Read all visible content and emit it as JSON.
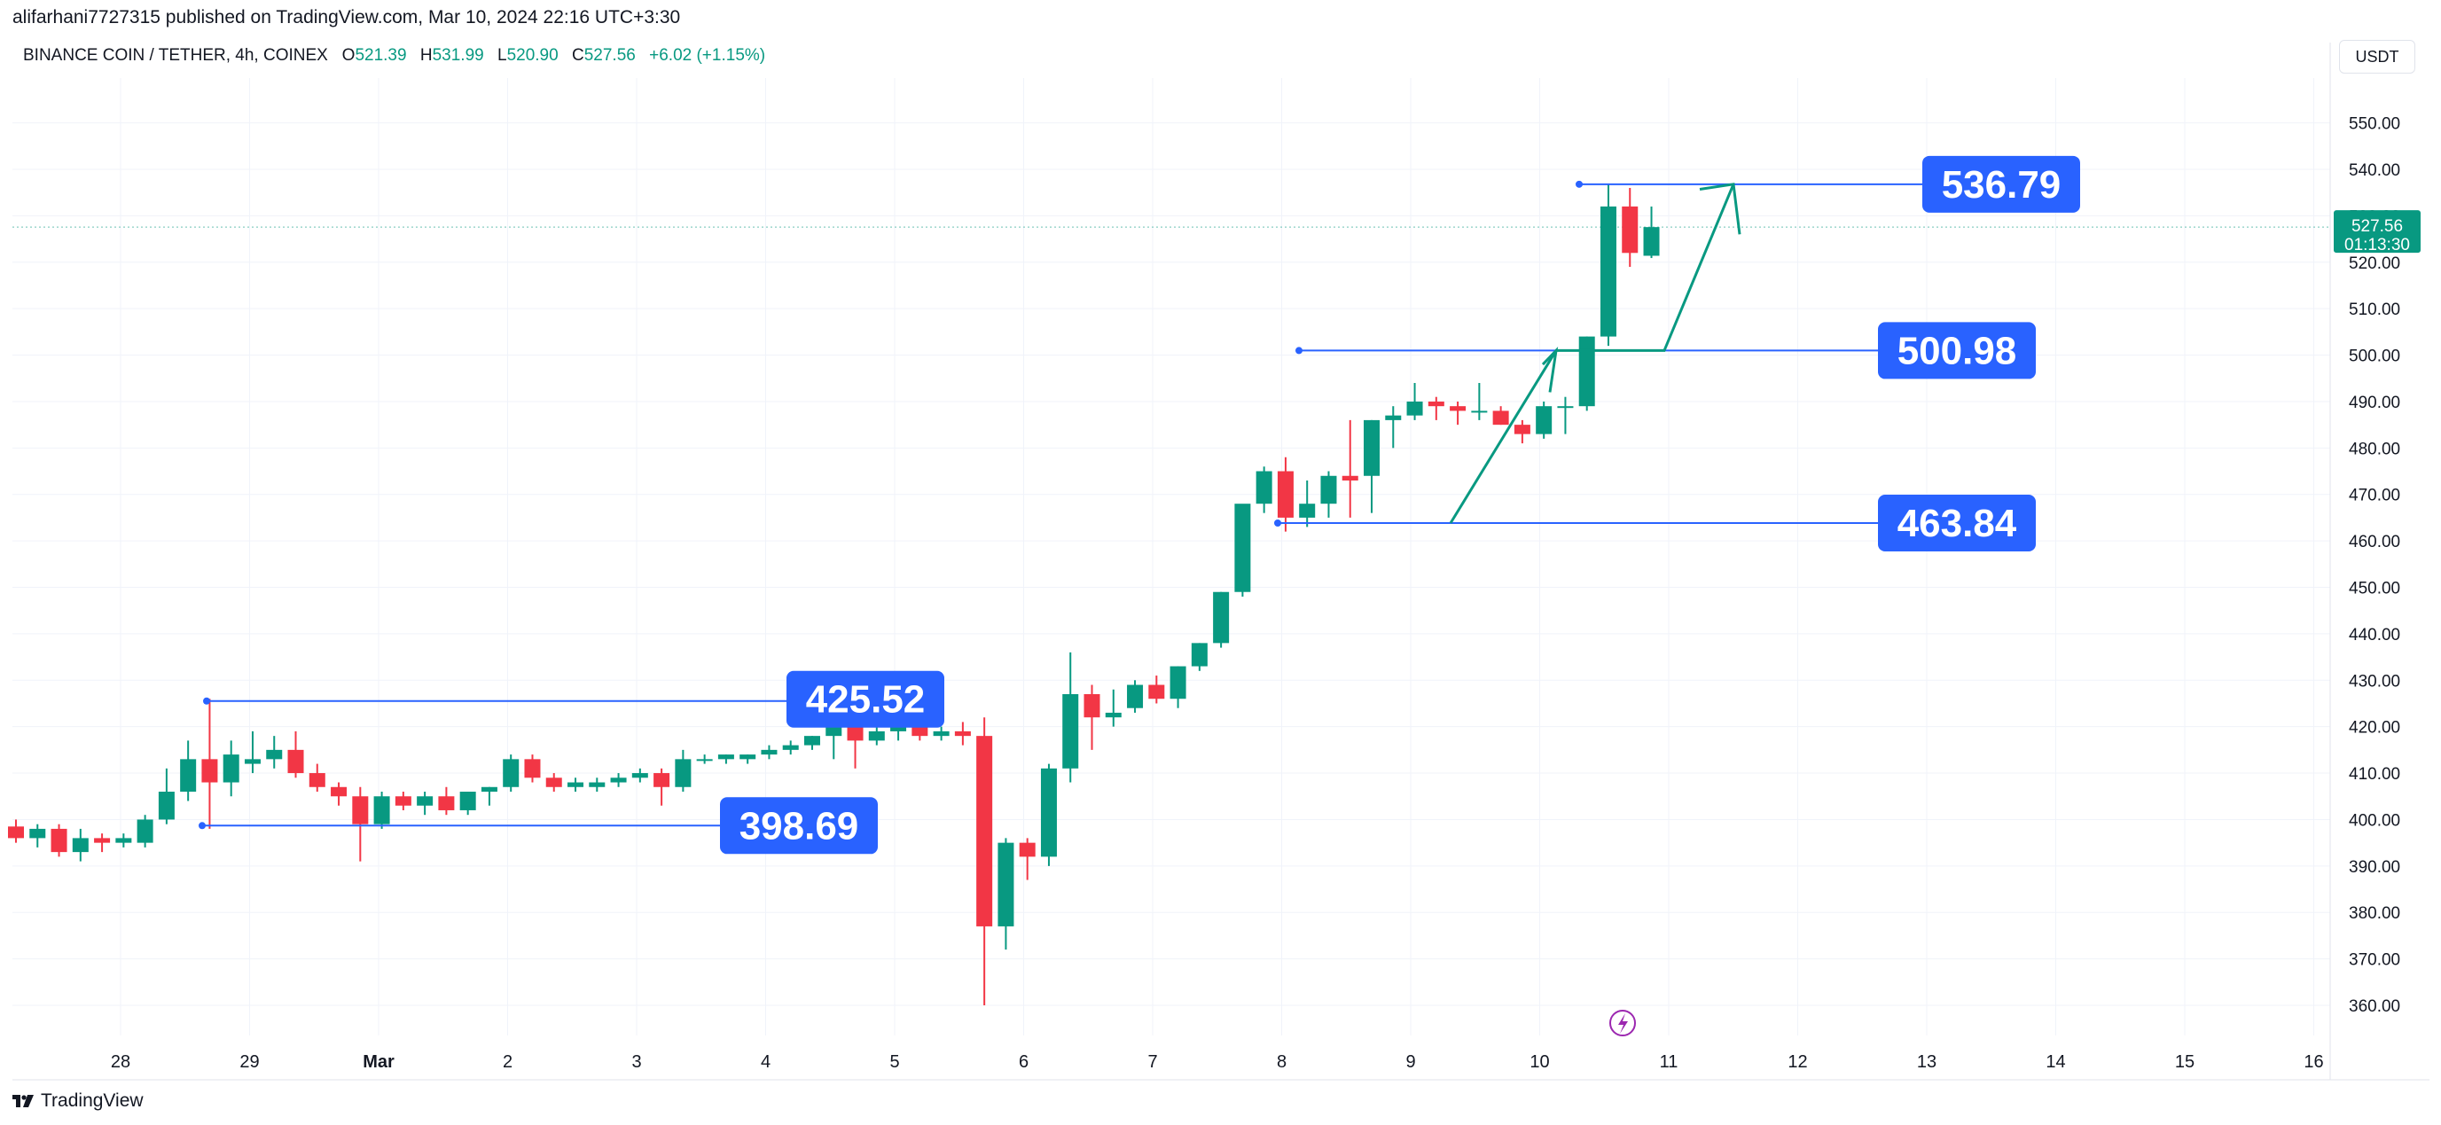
{
  "header": {
    "publisher": "alifarhani7727315 published on TradingView.com, Mar 10, 2024 22:16 UTC+3:30"
  },
  "legend": {
    "symbol": "BINANCE COIN / TETHER, 4h, COINEX",
    "open_label": "O",
    "open": "521.39",
    "high_label": "H",
    "high": "531.99",
    "low_label": "L",
    "low": "520.90",
    "close_label": "C",
    "close": "527.56",
    "change": "+6.02 (+1.15%)"
  },
  "currency_button": "USDT",
  "footer": {
    "brand": "TradingView"
  },
  "colors": {
    "up": "#089981",
    "down": "#f23645",
    "level": "#2962ff",
    "label_bg": "#2962ff",
    "arrow": "#089981"
  },
  "chart_data": {
    "type": "candlestick",
    "ylim": [
      355,
      555
    ],
    "y_ticks": [
      360,
      370,
      380,
      390,
      400,
      410,
      420,
      430,
      440,
      450,
      460,
      470,
      480,
      490,
      500,
      510,
      520,
      530,
      540,
      550
    ],
    "x_ticks": [
      {
        "label": "28",
        "t": 1.0
      },
      {
        "label": "29",
        "t": 2.0
      },
      {
        "label": "Mar",
        "t": 3.0
      },
      {
        "label": "2",
        "t": 4.0
      },
      {
        "label": "3",
        "t": 5.0
      },
      {
        "label": "4",
        "t": 6.0
      },
      {
        "label": "5",
        "t": 7.0
      },
      {
        "label": "6",
        "t": 8.0
      },
      {
        "label": "7",
        "t": 9.0
      },
      {
        "label": "8",
        "t": 10.0
      },
      {
        "label": "9",
        "t": 11.0
      },
      {
        "label": "10",
        "t": 12.0
      },
      {
        "label": "11",
        "t": 13.0
      },
      {
        "label": "12",
        "t": 14.0
      },
      {
        "label": "13",
        "t": 15.0
      },
      {
        "label": "14",
        "t": 16.0
      },
      {
        "label": "15",
        "t": 17.0
      },
      {
        "label": "16",
        "t": 18.0
      }
    ],
    "candles": [
      [
        398.5,
        400,
        395,
        396
      ],
      [
        396,
        399,
        394,
        398
      ],
      [
        398,
        399,
        392,
        393
      ],
      [
        393,
        398,
        391,
        396
      ],
      [
        396,
        397,
        393,
        395
      ],
      [
        395,
        397,
        394,
        396
      ],
      [
        395,
        401,
        394,
        400
      ],
      [
        400,
        411,
        399,
        406
      ],
      [
        406,
        417,
        404,
        413
      ],
      [
        413,
        426,
        398,
        408
      ],
      [
        408,
        417,
        405,
        414
      ],
      [
        412,
        419,
        410,
        413
      ],
      [
        413,
        418,
        411,
        415
      ],
      [
        415,
        419,
        409,
        410
      ],
      [
        410,
        412,
        406,
        407
      ],
      [
        407,
        408,
        403,
        405
      ],
      [
        405,
        407,
        391,
        399
      ],
      [
        399,
        406,
        398,
        405
      ],
      [
        405,
        406,
        402,
        403
      ],
      [
        403,
        406,
        401,
        405
      ],
      [
        405,
        407,
        401,
        402
      ],
      [
        402,
        406,
        401,
        406
      ],
      [
        406,
        407,
        403,
        407
      ],
      [
        407,
        414,
        406,
        413
      ],
      [
        413,
        414,
        408,
        409
      ],
      [
        409,
        410,
        406,
        407
      ],
      [
        407,
        409,
        406,
        408
      ],
      [
        407,
        409,
        406,
        408
      ],
      [
        408,
        410,
        407,
        409
      ],
      [
        409,
        411,
        408,
        410
      ],
      [
        410,
        411,
        403,
        407
      ],
      [
        407,
        415,
        406,
        413
      ],
      [
        413,
        414,
        412,
        413
      ],
      [
        413,
        414,
        412,
        414
      ],
      [
        413,
        414,
        412,
        414
      ],
      [
        414,
        416,
        413,
        415
      ],
      [
        415,
        417,
        414,
        416
      ],
      [
        416,
        418,
        415,
        418
      ],
      [
        418,
        423,
        413,
        420
      ],
      [
        420,
        422,
        411,
        417
      ],
      [
        417,
        420,
        416,
        419
      ],
      [
        419,
        422,
        417,
        420
      ],
      [
        421,
        424,
        417,
        418
      ],
      [
        418,
        420,
        417,
        419
      ],
      [
        419,
        421,
        416,
        418
      ],
      [
        418,
        422,
        360,
        377
      ],
      [
        377,
        396,
        372,
        395
      ],
      [
        395,
        396,
        387,
        392
      ],
      [
        392,
        412,
        390,
        411
      ],
      [
        411,
        436,
        408,
        427
      ],
      [
        427,
        429,
        415,
        422
      ],
      [
        422,
        428,
        420,
        423
      ],
      [
        424,
        430,
        423,
        429
      ],
      [
        429,
        431,
        425,
        426
      ],
      [
        426,
        433,
        424,
        433
      ],
      [
        433,
        438,
        432,
        438
      ],
      [
        438,
        449,
        437,
        449
      ],
      [
        449,
        467,
        448,
        468
      ],
      [
        468,
        476,
        466,
        475
      ],
      [
        475,
        478,
        462,
        465
      ],
      [
        465,
        473,
        463,
        468
      ],
      [
        468,
        475,
        465,
        474
      ],
      [
        474,
        486,
        465,
        473
      ],
      [
        474,
        486,
        466,
        486
      ],
      [
        486,
        489,
        480,
        487
      ],
      [
        487,
        494,
        486,
        490
      ],
      [
        490,
        491,
        486,
        489
      ],
      [
        489,
        490,
        485,
        488
      ],
      [
        488,
        494,
        486,
        488
      ],
      [
        488,
        489,
        485,
        485
      ],
      [
        485,
        486,
        481,
        483
      ],
      [
        483,
        490,
        482,
        489
      ],
      [
        489,
        491,
        483,
        489
      ],
      [
        489,
        504,
        488,
        504
      ],
      [
        504,
        536.79,
        502,
        532
      ],
      [
        532,
        536,
        519,
        522
      ],
      [
        521.39,
        531.99,
        520.9,
        527.56
      ]
    ],
    "last_price": {
      "price": "527.56",
      "countdown": "01:13:30",
      "value": 527.56
    },
    "levels": [
      {
        "label": "425.52",
        "value": 425.52
      },
      {
        "label": "398.69",
        "value": 398.69
      },
      {
        "label": "463.84",
        "value": 463.84
      },
      {
        "label": "500.98",
        "value": 500.98
      },
      {
        "label": "536.79",
        "value": 536.79
      }
    ]
  }
}
